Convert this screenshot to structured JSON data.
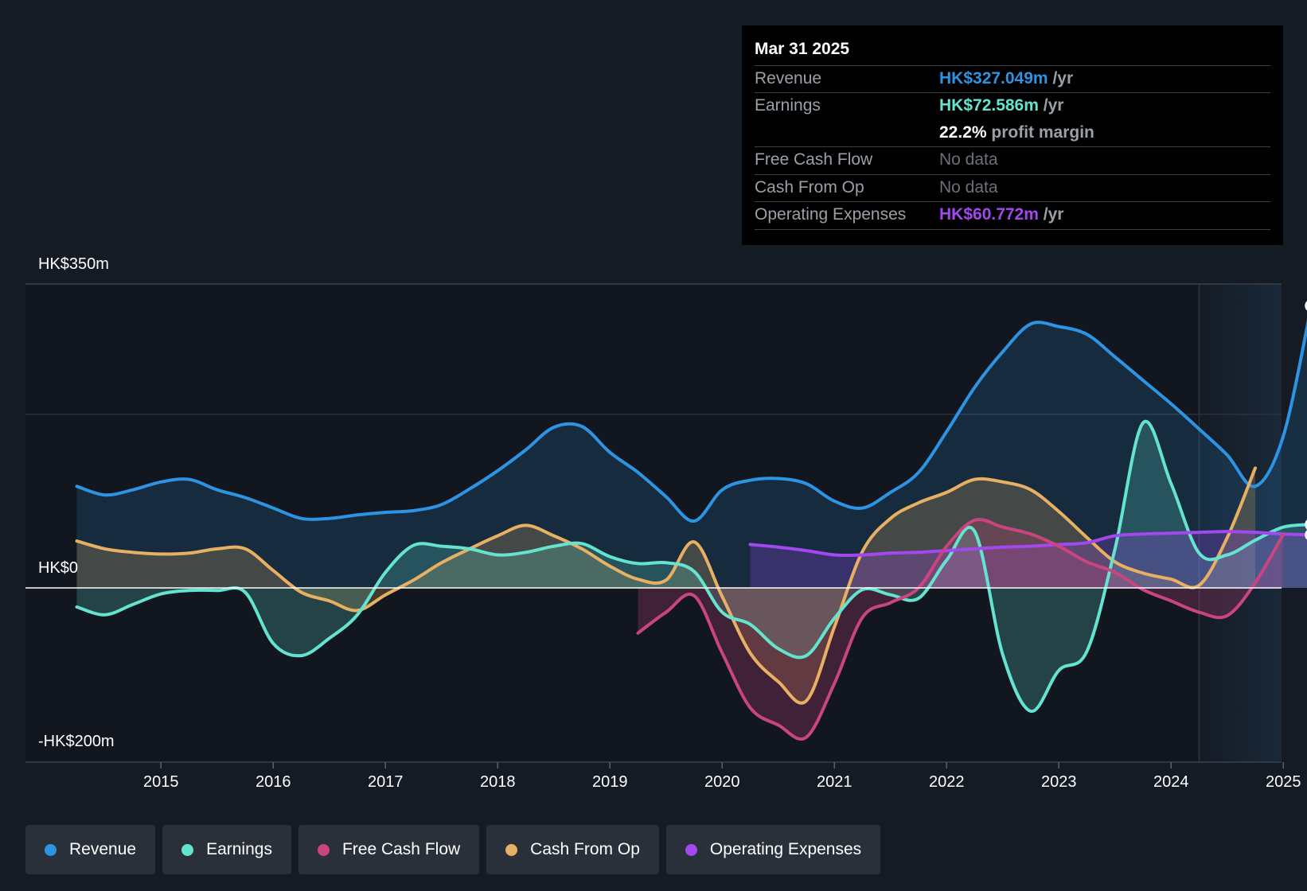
{
  "tooltip": {
    "date": "Mar 31 2025",
    "rows": {
      "revenue": {
        "label": "Revenue",
        "value": "HK$327.049m",
        "unit": "/yr"
      },
      "earnings": {
        "label": "Earnings",
        "value": "HK$72.586m",
        "unit": "/yr"
      },
      "margin": {
        "value": "22.2%",
        "unit": "profit margin"
      },
      "fcf": {
        "label": "Free Cash Flow",
        "value": "No data"
      },
      "cfo": {
        "label": "Cash From Op",
        "value": "No data"
      },
      "opex": {
        "label": "Operating Expenses",
        "value": "HK$60.772m",
        "unit": "/yr"
      }
    }
  },
  "colors": {
    "revenue": "#2d93e3",
    "earnings": "#64e4d0",
    "fcf": "#c8457f",
    "cfo": "#e8b063",
    "opex": "#a347ee",
    "background": "#151b24"
  },
  "legend": {
    "revenue": "Revenue",
    "earnings": "Earnings",
    "fcf": "Free Cash Flow",
    "cfo": "Cash From Op",
    "opex": "Operating Expenses"
  },
  "chart_data": {
    "type": "area",
    "title": "",
    "y_axis": {
      "top_label": "HK$350m",
      "zero_label": "HK$0",
      "bottom_label": "-HK$200m",
      "ylim": [
        -200,
        350
      ]
    },
    "x_axis": {
      "ticks": [
        "2015",
        "2016",
        "2017",
        "2018",
        "2019",
        "2020",
        "2021",
        "2022",
        "2023",
        "2024",
        "2025"
      ],
      "tick_values": [
        2015,
        2016,
        2017,
        2018,
        2019,
        2020,
        2021,
        2022,
        2023,
        2024,
        2025
      ],
      "xlim": [
        2013.75,
        2025.25
      ]
    },
    "forecast_start": 2024.25,
    "series": [
      {
        "name": "Revenue",
        "key": "revenue",
        "fill": true,
        "points": [
          [
            2014.25,
            117
          ],
          [
            2014.5,
            107
          ],
          [
            2014.75,
            113
          ],
          [
            2015.0,
            122
          ],
          [
            2015.25,
            125
          ],
          [
            2015.5,
            113
          ],
          [
            2015.75,
            104
          ],
          [
            2016.0,
            92
          ],
          [
            2016.25,
            80
          ],
          [
            2016.5,
            80
          ],
          [
            2016.75,
            84
          ],
          [
            2017.0,
            87
          ],
          [
            2017.25,
            89
          ],
          [
            2017.5,
            96
          ],
          [
            2017.75,
            114
          ],
          [
            2018.0,
            135
          ],
          [
            2018.25,
            159
          ],
          [
            2018.5,
            185
          ],
          [
            2018.75,
            186
          ],
          [
            2019.0,
            156
          ],
          [
            2019.25,
            133
          ],
          [
            2019.5,
            105
          ],
          [
            2019.75,
            77
          ],
          [
            2020.0,
            113
          ],
          [
            2020.25,
            124
          ],
          [
            2020.5,
            126
          ],
          [
            2020.75,
            120
          ],
          [
            2021.0,
            100
          ],
          [
            2021.25,
            92
          ],
          [
            2021.5,
            110
          ],
          [
            2021.75,
            133
          ],
          [
            2022.0,
            180
          ],
          [
            2022.25,
            231
          ],
          [
            2022.5,
            272
          ],
          [
            2022.75,
            304
          ],
          [
            2023.0,
            301
          ],
          [
            2023.25,
            292
          ],
          [
            2023.5,
            266
          ],
          [
            2023.75,
            239
          ],
          [
            2024.0,
            212
          ],
          [
            2024.25,
            183
          ],
          [
            2024.5,
            153
          ],
          [
            2024.75,
            117
          ],
          [
            2025.0,
            175
          ],
          [
            2025.25,
            325
          ]
        ]
      },
      {
        "name": "Earnings",
        "key": "earnings",
        "fill": true,
        "points": [
          [
            2014.25,
            -22
          ],
          [
            2014.5,
            -31
          ],
          [
            2014.75,
            -19
          ],
          [
            2015.0,
            -7
          ],
          [
            2015.25,
            -3
          ],
          [
            2015.5,
            -3
          ],
          [
            2015.75,
            -5
          ],
          [
            2016.0,
            -64
          ],
          [
            2016.25,
            -78
          ],
          [
            2016.5,
            -58
          ],
          [
            2016.75,
            -31
          ],
          [
            2017.0,
            18
          ],
          [
            2017.25,
            49
          ],
          [
            2017.5,
            48
          ],
          [
            2017.75,
            45
          ],
          [
            2018.0,
            38
          ],
          [
            2018.25,
            41
          ],
          [
            2018.5,
            48
          ],
          [
            2018.75,
            51
          ],
          [
            2019.0,
            36
          ],
          [
            2019.25,
            28
          ],
          [
            2019.5,
            29
          ],
          [
            2019.75,
            19
          ],
          [
            2020.0,
            -28
          ],
          [
            2020.25,
            -42
          ],
          [
            2020.5,
            -70
          ],
          [
            2020.75,
            -78
          ],
          [
            2021.0,
            -35
          ],
          [
            2021.25,
            -2
          ],
          [
            2021.5,
            -8
          ],
          [
            2021.75,
            -12
          ],
          [
            2022.0,
            32
          ],
          [
            2022.25,
            65
          ],
          [
            2022.5,
            -77
          ],
          [
            2022.75,
            -142
          ],
          [
            2023.0,
            -95
          ],
          [
            2023.25,
            -73
          ],
          [
            2023.5,
            45
          ],
          [
            2023.75,
            190
          ],
          [
            2024.0,
            120
          ],
          [
            2024.25,
            40
          ],
          [
            2024.5,
            38
          ],
          [
            2024.75,
            55
          ],
          [
            2025.0,
            70
          ],
          [
            2025.25,
            73
          ]
        ]
      },
      {
        "name": "Free Cash Flow",
        "key": "fcf",
        "fill": true,
        "points": [
          [
            2019.25,
            -52
          ],
          [
            2019.5,
            -28
          ],
          [
            2019.75,
            -9
          ],
          [
            2020.0,
            -75
          ],
          [
            2020.25,
            -138
          ],
          [
            2020.5,
            -158
          ],
          [
            2020.75,
            -172
          ],
          [
            2021.0,
            -110
          ],
          [
            2021.25,
            -34
          ],
          [
            2021.5,
            -17
          ],
          [
            2021.75,
            0
          ],
          [
            2022.0,
            48
          ],
          [
            2022.25,
            78
          ],
          [
            2022.5,
            70
          ],
          [
            2022.75,
            62
          ],
          [
            2023.0,
            48
          ],
          [
            2023.25,
            30
          ],
          [
            2023.5,
            18
          ],
          [
            2023.75,
            -2
          ],
          [
            2024.0,
            -15
          ],
          [
            2024.25,
            -28
          ],
          [
            2024.5,
            -32
          ],
          [
            2024.75,
            6
          ],
          [
            2025.0,
            62
          ]
        ]
      },
      {
        "name": "Cash From Op",
        "key": "cfo",
        "fill": true,
        "points": [
          [
            2014.25,
            54
          ],
          [
            2014.5,
            45
          ],
          [
            2014.75,
            41
          ],
          [
            2015.0,
            39
          ],
          [
            2015.25,
            40
          ],
          [
            2015.5,
            45
          ],
          [
            2015.75,
            45
          ],
          [
            2016.0,
            20
          ],
          [
            2016.25,
            -5
          ],
          [
            2016.5,
            -15
          ],
          [
            2016.75,
            -26
          ],
          [
            2017.0,
            -8
          ],
          [
            2017.25,
            9
          ],
          [
            2017.5,
            29
          ],
          [
            2017.75,
            45
          ],
          [
            2018.0,
            60
          ],
          [
            2018.25,
            72
          ],
          [
            2018.5,
            60
          ],
          [
            2018.75,
            45
          ],
          [
            2019.0,
            25
          ],
          [
            2019.25,
            10
          ],
          [
            2019.5,
            9
          ],
          [
            2019.75,
            53
          ],
          [
            2020.0,
            -10
          ],
          [
            2020.25,
            -75
          ],
          [
            2020.5,
            -108
          ],
          [
            2020.75,
            -130
          ],
          [
            2021.0,
            -45
          ],
          [
            2021.25,
            42
          ],
          [
            2021.5,
            80
          ],
          [
            2021.75,
            98
          ],
          [
            2022.0,
            110
          ],
          [
            2022.25,
            125
          ],
          [
            2022.5,
            122
          ],
          [
            2022.75,
            113
          ],
          [
            2023.0,
            88
          ],
          [
            2023.25,
            58
          ],
          [
            2023.5,
            30
          ],
          [
            2023.75,
            17
          ],
          [
            2024.0,
            10
          ],
          [
            2024.25,
            3
          ],
          [
            2024.5,
            58
          ],
          [
            2024.75,
            138
          ]
        ]
      },
      {
        "name": "Operating Expenses",
        "key": "opex",
        "fill": true,
        "points": [
          [
            2020.25,
            50
          ],
          [
            2020.5,
            47
          ],
          [
            2020.75,
            43
          ],
          [
            2021.0,
            38
          ],
          [
            2021.25,
            38
          ],
          [
            2021.5,
            40
          ],
          [
            2021.75,
            41
          ],
          [
            2022.0,
            43
          ],
          [
            2022.25,
            45
          ],
          [
            2022.5,
            47
          ],
          [
            2022.75,
            48
          ],
          [
            2023.0,
            50
          ],
          [
            2023.25,
            52
          ],
          [
            2023.5,
            60
          ],
          [
            2023.75,
            62
          ],
          [
            2024.0,
            63
          ],
          [
            2024.25,
            64
          ],
          [
            2024.5,
            65
          ],
          [
            2024.75,
            64
          ],
          [
            2025.0,
            62
          ],
          [
            2025.25,
            61
          ]
        ]
      }
    ]
  }
}
